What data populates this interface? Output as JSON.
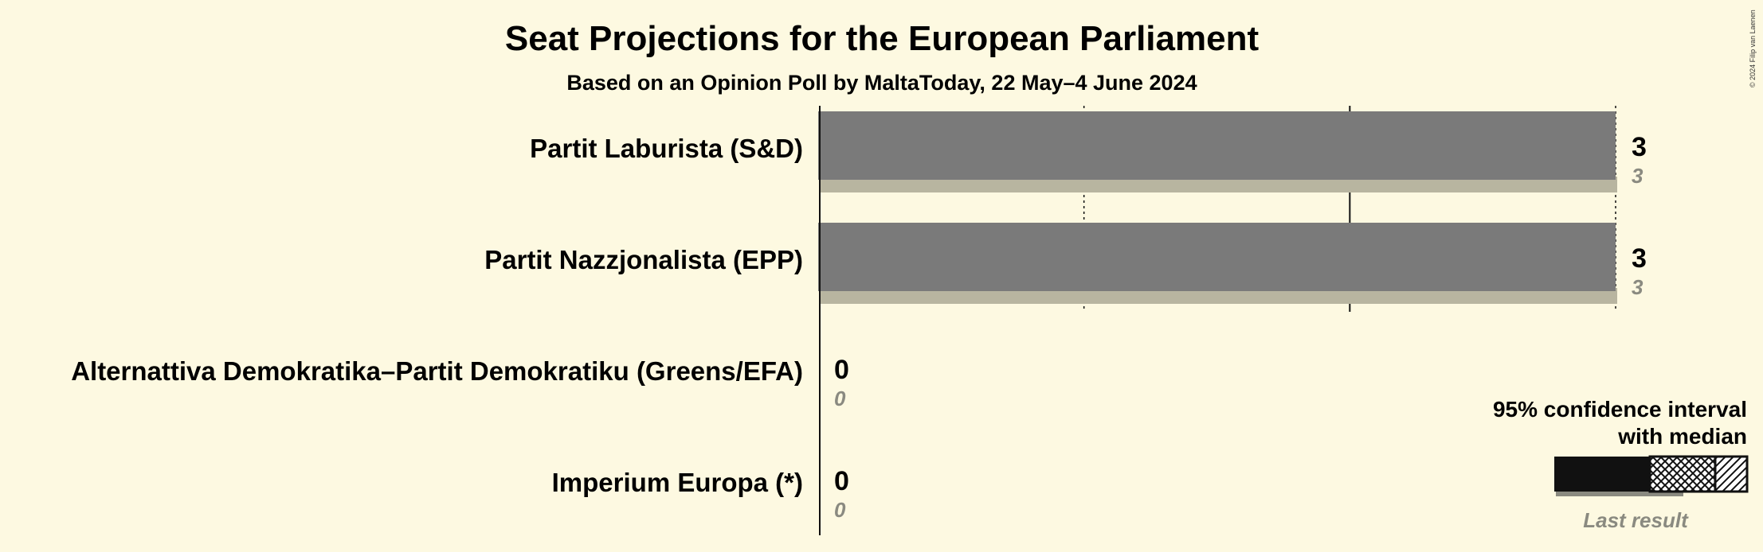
{
  "chart_data": {
    "type": "bar",
    "orientation": "horizontal",
    "title": "Seat Projections for the European Parliament",
    "subtitle": "Based on an Opinion Poll by MaltaToday, 22 May–4 June 2024",
    "categories": [
      "Partit Laburista (S&D)",
      "Partit Nazzjonalista (EPP)",
      "Alternattiva Demokratika–Partit Demokratiku (Greens/EFA)",
      "Imperium Europa (*)"
    ],
    "series": [
      {
        "name": "95% confidence interval with median",
        "values": [
          3,
          3,
          0,
          0
        ]
      },
      {
        "name": "Last result",
        "values": [
          3,
          3,
          0,
          0
        ]
      }
    ],
    "value_labels": [
      "3",
      "3",
      "0",
      "0"
    ],
    "last_result_labels": [
      "3",
      "3",
      "0",
      "0"
    ],
    "xlim": [
      0,
      3
    ],
    "grid_ticks": [
      1,
      2,
      3
    ],
    "legend": {
      "line1": "95% confidence interval",
      "line2": "with median",
      "last_result": "Last result",
      "placement": "bottom-right"
    },
    "copyright": "© 2024 Filip van Laenen",
    "colors": {
      "background": "#fdf9e1",
      "bar": "#7a7a7a",
      "last_result": "#b8b5a0",
      "axis": "#111111",
      "text": "#111111",
      "muted_text": "#8a8a80"
    }
  }
}
